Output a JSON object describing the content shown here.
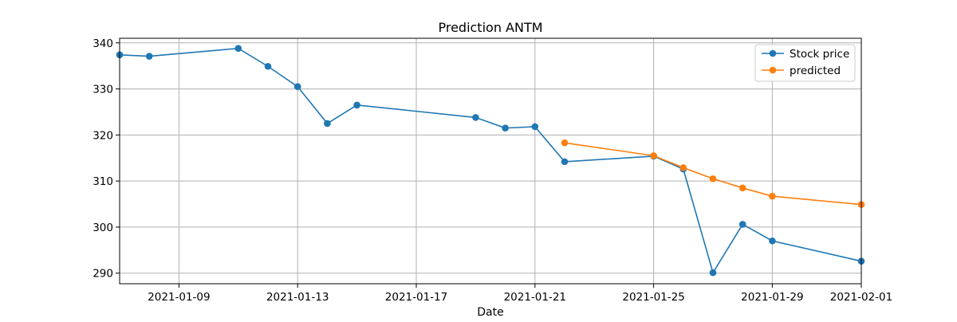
{
  "chart_data": {
    "type": "line",
    "title": "Prediction ANTM",
    "xlabel": "Date",
    "ylabel": "",
    "x_type": "date",
    "xlim": [
      "2021-01-07",
      "2021-02-01"
    ],
    "ylim": [
      287.7,
      341.0
    ],
    "x_ticks": [
      "2021-01-09",
      "2021-01-13",
      "2021-01-17",
      "2021-01-21",
      "2021-01-25",
      "2021-01-29",
      "2021-02-01"
    ],
    "y_ticks": [
      290,
      300,
      310,
      320,
      330,
      340
    ],
    "grid": true,
    "legend_position": "top-right",
    "series": [
      {
        "name": "Stock price",
        "color": "#1f77b4",
        "points": [
          {
            "x": "2021-01-07",
            "y": 337.4
          },
          {
            "x": "2021-01-08",
            "y": 337.1
          },
          {
            "x": "2021-01-11",
            "y": 338.8
          },
          {
            "x": "2021-01-12",
            "y": 334.9
          },
          {
            "x": "2021-01-13",
            "y": 330.5
          },
          {
            "x": "2021-01-14",
            "y": 322.5
          },
          {
            "x": "2021-01-15",
            "y": 326.5
          },
          {
            "x": "2021-01-19",
            "y": 323.8
          },
          {
            "x": "2021-01-20",
            "y": 321.5
          },
          {
            "x": "2021-01-21",
            "y": 321.8
          },
          {
            "x": "2021-01-22",
            "y": 314.2
          },
          {
            "x": "2021-01-25",
            "y": 315.4
          },
          {
            "x": "2021-01-26",
            "y": 312.6
          },
          {
            "x": "2021-01-27",
            "y": 290.1
          },
          {
            "x": "2021-01-28",
            "y": 300.6
          },
          {
            "x": "2021-01-29",
            "y": 297.0
          },
          {
            "x": "2021-02-01",
            "y": 292.6
          }
        ]
      },
      {
        "name": "predicted",
        "color": "#ff7f0e",
        "points": [
          {
            "x": "2021-01-22",
            "y": 318.3
          },
          {
            "x": "2021-01-25",
            "y": 315.5
          },
          {
            "x": "2021-01-26",
            "y": 312.9
          },
          {
            "x": "2021-01-27",
            "y": 310.5
          },
          {
            "x": "2021-01-28",
            "y": 308.5
          },
          {
            "x": "2021-01-29",
            "y": 306.7
          },
          {
            "x": "2021-02-01",
            "y": 304.9
          }
        ]
      }
    ]
  }
}
